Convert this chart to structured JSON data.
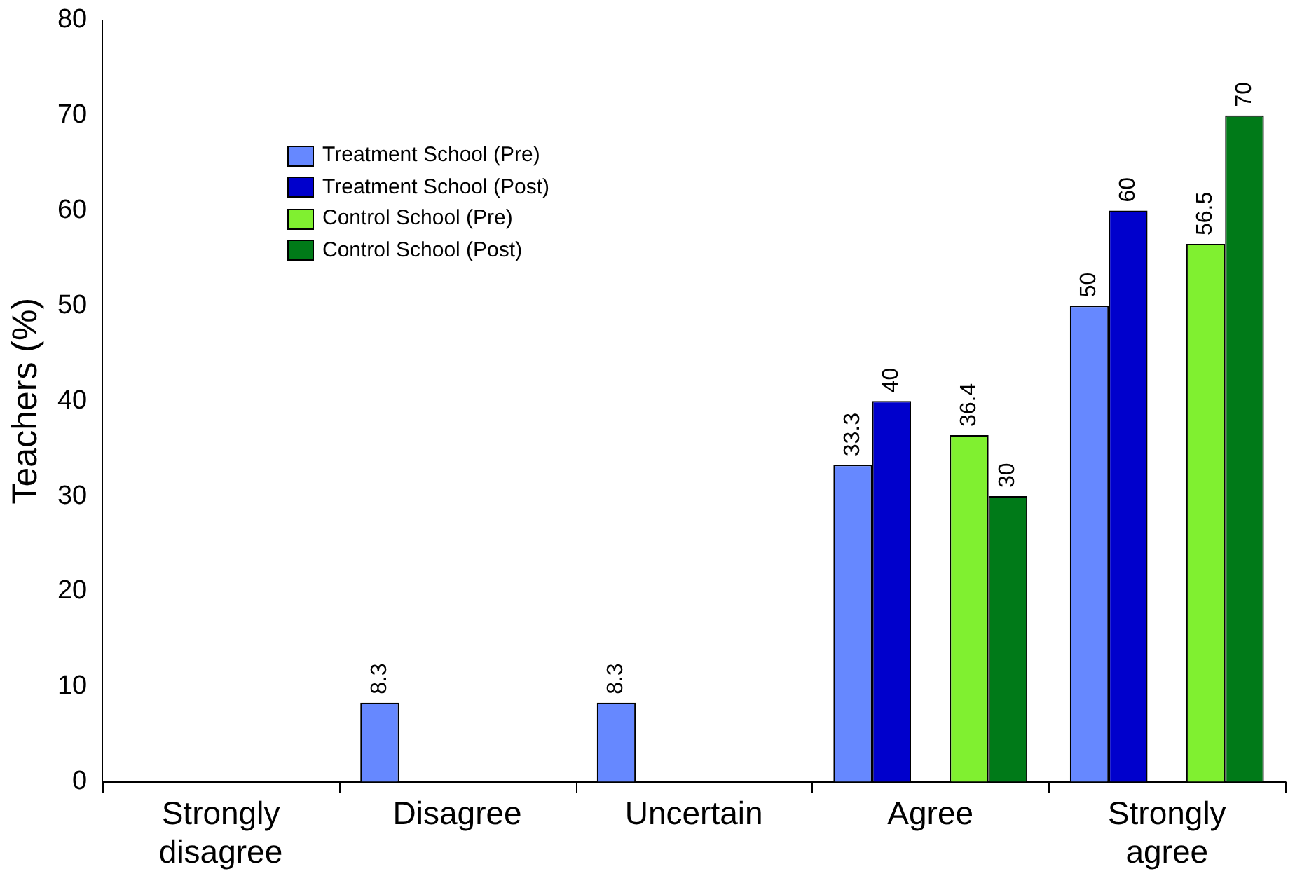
{
  "chart_data": {
    "type": "bar",
    "ylabel": "Teachers (%)",
    "categories": [
      "Strongly\ndisagree",
      "Disagree",
      "Uncertain",
      "Agree",
      "Strongly\nagree"
    ],
    "series": [
      {
        "name": "Treatment School (Pre)",
        "color": "#6688ff",
        "values": [
          null,
          8.3,
          8.3,
          33.3,
          50
        ]
      },
      {
        "name": "Treatment School (Post)",
        "color": "#0000cc",
        "values": [
          null,
          null,
          null,
          40,
          60
        ]
      },
      {
        "name": "Control School (Pre)",
        "color": "#80f030",
        "values": [
          null,
          null,
          null,
          36.4,
          56.5
        ]
      },
      {
        "name": "Control School (Post)",
        "color": "#007a18",
        "values": [
          null,
          null,
          null,
          30,
          70
        ]
      }
    ],
    "ylim": [
      0,
      80
    ],
    "yticks": [
      0,
      10,
      20,
      30,
      40,
      50,
      60,
      70,
      80
    ],
    "grid": false,
    "legend": "top left",
    "data_labels": true
  }
}
